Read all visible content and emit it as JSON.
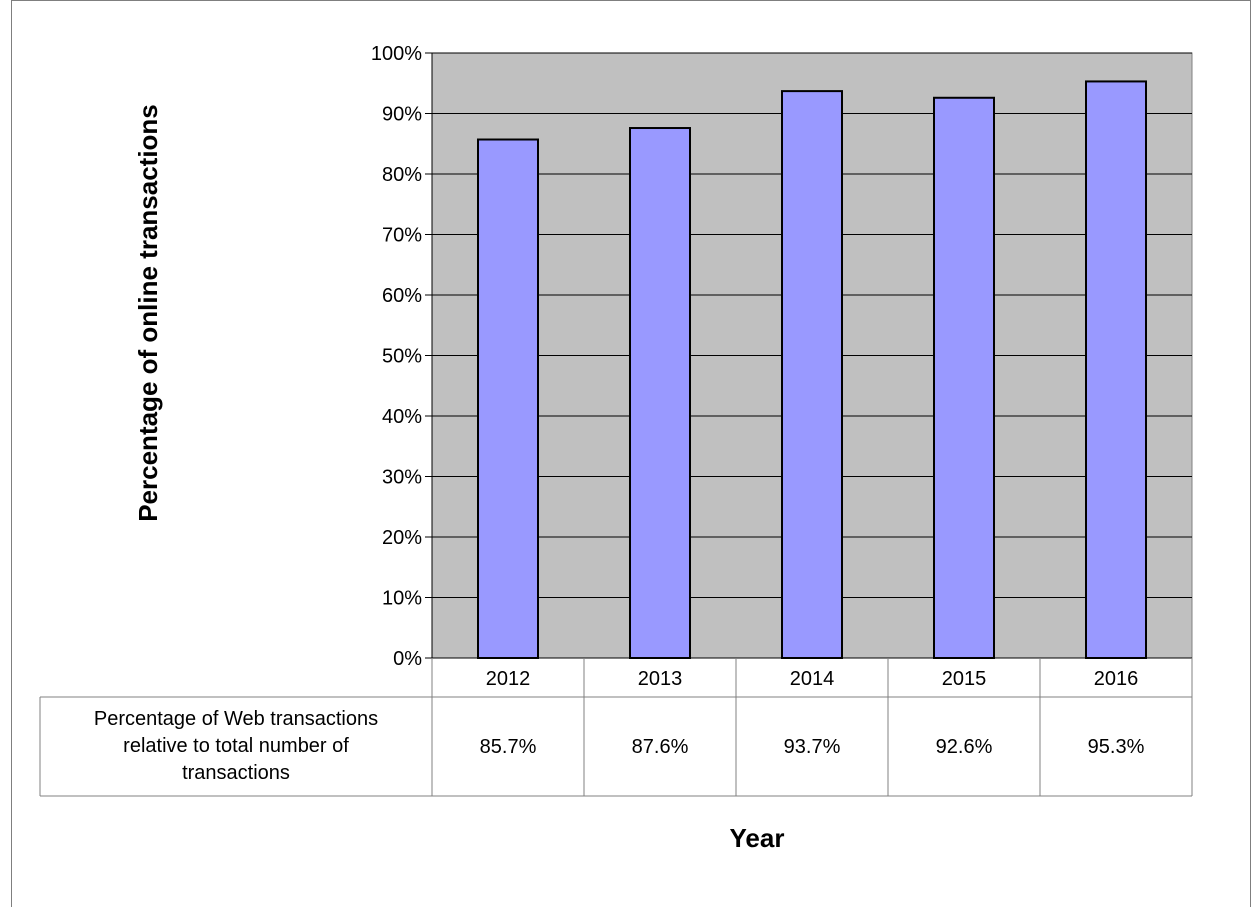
{
  "chart_data": {
    "type": "bar",
    "title": "",
    "xlabel": "Year",
    "ylabel": "Percentage of online transactions",
    "categories": [
      "2012",
      "2013",
      "2014",
      "2015",
      "2016"
    ],
    "values": [
      85.7,
      87.6,
      93.7,
      92.6,
      95.3
    ],
    "ylim": [
      0,
      100
    ],
    "yticks": [
      "0%",
      "10%",
      "20%",
      "30%",
      "40%",
      "50%",
      "60%",
      "70%",
      "80%",
      "90%",
      "100%"
    ],
    "grid": true,
    "legend": "none",
    "colors": {
      "bar_fill": "#9999ff",
      "bar_stroke": "#000000",
      "plot_background": "#c0c0c0"
    },
    "data_table": {
      "row_header": [
        "Percentage of Web transactions",
        "relative to total number of",
        "transactions"
      ],
      "cells": [
        "85.7%",
        "87.6%",
        "93.7%",
        "92.6%",
        "95.3%"
      ]
    }
  }
}
